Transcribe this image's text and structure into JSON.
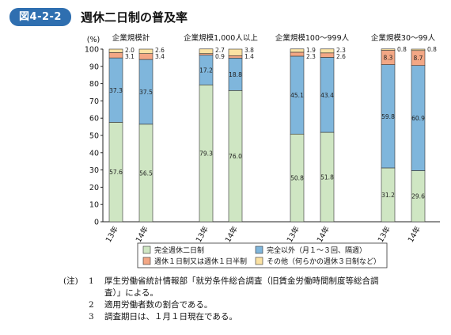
{
  "figure": {
    "number": "図4-2-2",
    "title": "週休二日制の普及率"
  },
  "chart_data": {
    "type": "bar",
    "stacked": true,
    "title": "週休二日制の普及率",
    "ylabel": "(%)",
    "ylim": [
      0,
      100
    ],
    "yticks": [
      "0",
      "10",
      "20",
      "30",
      "40",
      "50",
      "60",
      "70",
      "80",
      "90",
      "100"
    ],
    "groups": [
      {
        "label": "企業規模計",
        "bars": [
          {
            "label": "13年",
            "values": [
              57.6,
              37.3,
              3.1,
              2.0
            ],
            "texts": [
              "57.6",
              "37.3",
              "3.1",
              "2.0"
            ]
          },
          {
            "label": "14年",
            "values": [
              56.5,
              37.5,
              3.4,
              2.6
            ],
            "texts": [
              "56.5",
              "37.5",
              "3.4",
              "2.6"
            ]
          }
        ]
      },
      {
        "label": "企業規模1,000人以上",
        "bars": [
          {
            "label": "13年",
            "values": [
              79.3,
              17.2,
              0.9,
              2.7
            ],
            "texts": [
              "79.3",
              "17.2",
              "0.9",
              "2.7"
            ]
          },
          {
            "label": "14年",
            "values": [
              76.0,
              18.8,
              1.4,
              3.8
            ],
            "texts": [
              "76.0",
              "18.8",
              "1.4",
              "3.8"
            ]
          }
        ]
      },
      {
        "label": "企業規模100〜999人",
        "bars": [
          {
            "label": "13年",
            "values": [
              50.8,
              45.1,
              2.3,
              1.9
            ],
            "texts": [
              "50.8",
              "45.1",
              "2.3",
              "1.9"
            ]
          },
          {
            "label": "14年",
            "values": [
              51.8,
              43.4,
              2.6,
              2.3
            ],
            "texts": [
              "51.8",
              "43.4",
              "2.6",
              "2.3"
            ]
          }
        ]
      },
      {
        "label": "企業規模30〜99人",
        "bars": [
          {
            "label": "13年",
            "values": [
              31.2,
              59.8,
              8.3,
              0.8
            ],
            "texts": [
              "31.2",
              "59.8",
              "8.3",
              "0.8"
            ]
          },
          {
            "label": "14年",
            "values": [
              29.6,
              60.9,
              8.7,
              0.8
            ],
            "texts": [
              "29.6",
              "60.9",
              "8.7",
              "0.8"
            ]
          }
        ]
      }
    ],
    "series": [
      {
        "name": "完全週休二日制",
        "color": "#cfe6c3"
      },
      {
        "name": "完全以外（月１〜３回、隔週）",
        "color": "#7fb6dc"
      },
      {
        "name": "週休１日制又は週休１日半制",
        "color": "#f3a785"
      },
      {
        "name": "その他（何らかの週休３日制など）",
        "color": "#fbe2a3"
      }
    ],
    "legend_position": "bottom"
  },
  "notes": {
    "tag": "(注)",
    "items": [
      {
        "num": "1",
        "lines": [
          "厚生労働省統計情報部「就労条件総合調査（旧賃金労働時間制度等総合調",
          "査）」による。"
        ]
      },
      {
        "num": "2",
        "lines": [
          "適用労働者数の割合である。"
        ]
      },
      {
        "num": "3",
        "lines": [
          "調査期日は、１月１日現在である。"
        ]
      }
    ]
  }
}
